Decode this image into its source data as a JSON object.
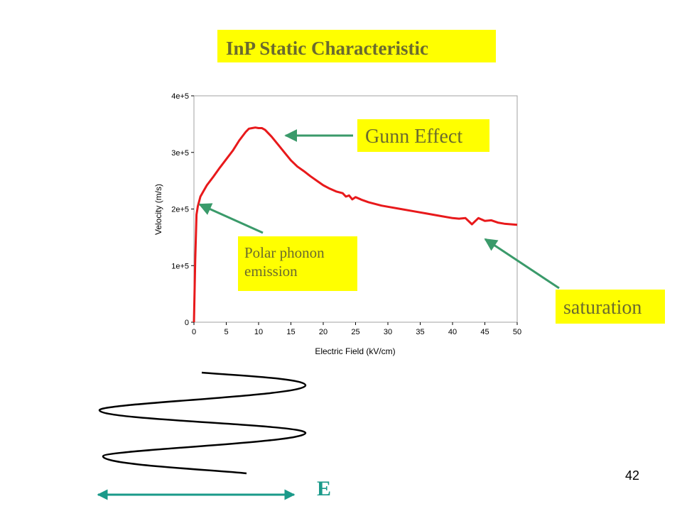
{
  "title": "InP Static Characteristic",
  "annotations": {
    "gunn_effect": "Gunn Effect",
    "polar_phonon_line1": "Polar phonon",
    "polar_phonon_line2": "emission",
    "saturation": "saturation"
  },
  "field_label": "E",
  "page_number": "42",
  "colors": {
    "highlight": "#ffff00",
    "curve": "#e8191b",
    "arrow": "#3a9a6a",
    "field_arrow": "#1a9a8a"
  },
  "chart_data": {
    "type": "line",
    "xlabel": "Electric Field (kV/cm)",
    "ylabel": "Velocity (m/s)",
    "xlim": [
      0,
      50
    ],
    "ylim": [
      0,
      400000
    ],
    "x_ticks": [
      "0",
      "5",
      "10",
      "15",
      "20",
      "25",
      "30",
      "35",
      "40",
      "45",
      "50"
    ],
    "y_ticks": [
      "0",
      "1e+5",
      "2e+5",
      "3e+5",
      "4e+5"
    ],
    "grid": false,
    "series": [
      {
        "x": [
          0,
          0.2,
          0.4,
          0.6,
          1,
          1.5,
          2,
          3,
          4,
          5,
          6,
          7,
          8,
          8.5,
          9,
          9.5,
          10,
          10.5,
          11,
          12,
          13,
          14,
          15,
          16,
          17,
          18,
          19,
          20,
          21,
          22,
          23,
          23.5,
          24,
          24.5,
          25,
          26,
          27,
          28,
          29,
          30,
          32,
          34,
          36,
          38,
          40,
          41,
          42,
          43,
          44,
          45,
          46,
          47,
          48,
          50
        ],
        "y": [
          0,
          110000,
          190000,
          205000,
          222000,
          232000,
          242000,
          257000,
          273000,
          288000,
          303000,
          321000,
          336000,
          342000,
          343000,
          344000,
          343000,
          343000,
          340000,
          328000,
          314000,
          300000,
          286000,
          275000,
          267000,
          258000,
          250000,
          242000,
          236000,
          231000,
          228000,
          222000,
          224000,
          217000,
          221000,
          216000,
          212000,
          209000,
          206000,
          204000,
          200000,
          196000,
          192000,
          188000,
          184000,
          183000,
          184000,
          173000,
          184000,
          179000,
          180000,
          176000,
          174000,
          172000
        ]
      }
    ]
  }
}
